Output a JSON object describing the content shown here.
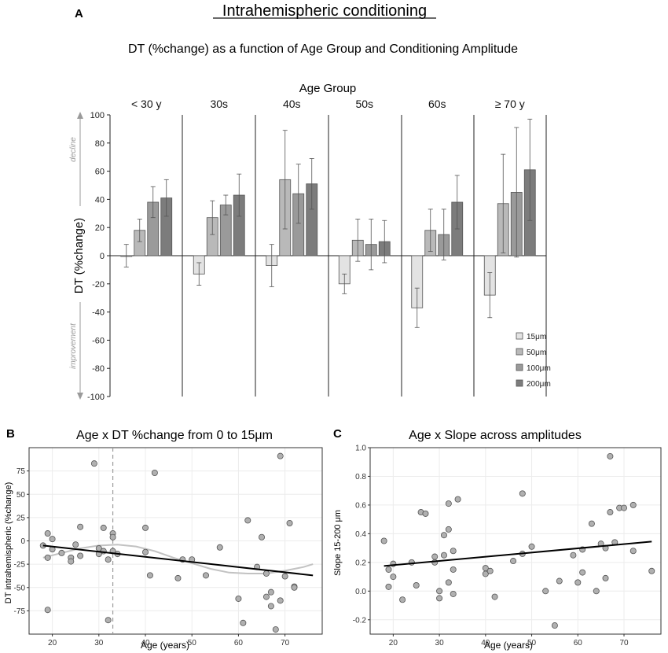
{
  "figure": {
    "title": "Intrahemispheric conditioning",
    "subtitle": "DT (%change) as a function of Age Group and Conditioning Amplitude"
  },
  "panel_labels": {
    "a": "A",
    "b": "B",
    "c": "C"
  },
  "colors": {
    "amp15": "#e3e3e3",
    "amp50": "#b9b9b9",
    "amp100": "#9a9a9a",
    "amp200": "#7c7c7c",
    "points": "#b0b0b0",
    "fit": "#000000",
    "smooth": "#c2c2c2",
    "dashed": "#9a9a9a",
    "grid": "#ececec"
  },
  "chart_data": [
    {
      "type": "bar",
      "panel": "A",
      "title": "DT (%change) as a function of Age Group and Conditioning Amplitude",
      "group_axis_label": "Age Group",
      "categories": [
        "< 30 y",
        "30s",
        "40s",
        "50s",
        "60s",
        "≥ 70 y"
      ],
      "ylabel": "DT (%change)",
      "ylim": [
        -100,
        100
      ],
      "yticks": [
        100,
        80,
        60,
        40,
        20,
        0,
        -20,
        -40,
        -60,
        -80,
        -100
      ],
      "annotations": {
        "up": "decline",
        "down": "improvement"
      },
      "series": [
        {
          "name": "15μm",
          "values": [
            0,
            -13,
            -7,
            -20,
            -37,
            -28
          ],
          "error": [
            8,
            8,
            15,
            7,
            14,
            16
          ]
        },
        {
          "name": "50μm",
          "values": [
            18,
            27,
            54,
            11,
            18,
            37
          ],
          "error": [
            8,
            12,
            35,
            15,
            15,
            35
          ]
        },
        {
          "name": "100μm",
          "values": [
            38,
            36,
            44,
            8,
            15,
            45
          ],
          "error": [
            11,
            7,
            21,
            18,
            18,
            46
          ]
        },
        {
          "name": "200μm",
          "values": [
            41,
            43,
            51,
            10,
            38,
            61
          ],
          "error": [
            13,
            15,
            18,
            15,
            19,
            36
          ]
        }
      ]
    },
    {
      "type": "scatter",
      "panel": "B",
      "title": "Age x DT %change from 0 to 15μm",
      "xlabel": "Age (years)",
      "ylabel": "DT intrahemispheric (%change)",
      "xlim": [
        15,
        78
      ],
      "ylim": [
        -100,
        100
      ],
      "xticks": [
        20,
        30,
        40,
        50,
        60,
        70
      ],
      "yticks": [
        75,
        50,
        25,
        0,
        -25,
        -50,
        -75
      ],
      "ytick_labels": [
        "75",
        "50",
        "25",
        "0",
        "-25",
        "-50",
        "-75"
      ],
      "vertical_reference_x": 33,
      "fit_line": [
        [
          18,
          -5
        ],
        [
          76,
          -37
        ]
      ],
      "smooth_curve": [
        [
          18,
          -18
        ],
        [
          22,
          -13
        ],
        [
          26,
          -8
        ],
        [
          30,
          -5
        ],
        [
          34,
          -4
        ],
        [
          38,
          -6
        ],
        [
          42,
          -11
        ],
        [
          46,
          -18
        ],
        [
          50,
          -24
        ],
        [
          54,
          -30
        ],
        [
          58,
          -34
        ],
        [
          62,
          -35
        ],
        [
          66,
          -35
        ],
        [
          70,
          -32
        ],
        [
          74,
          -28
        ],
        [
          76,
          -25
        ]
      ],
      "points": [
        [
          18,
          -5
        ],
        [
          19,
          8
        ],
        [
          19,
          -18
        ],
        [
          19,
          -74
        ],
        [
          20,
          2
        ],
        [
          20,
          -9
        ],
        [
          22,
          -13
        ],
        [
          24,
          -18
        ],
        [
          24,
          -22
        ],
        [
          25,
          -4
        ],
        [
          26,
          15
        ],
        [
          26,
          -16
        ],
        [
          29,
          83
        ],
        [
          30,
          -8
        ],
        [
          30,
          -14
        ],
        [
          31,
          14
        ],
        [
          31,
          -11
        ],
        [
          32,
          -20
        ],
        [
          32,
          -85
        ],
        [
          33,
          8
        ],
        [
          33,
          4
        ],
        [
          33,
          -11
        ],
        [
          34,
          -14
        ],
        [
          40,
          14
        ],
        [
          40,
          -12
        ],
        [
          41,
          -37
        ],
        [
          42,
          73
        ],
        [
          47,
          -40
        ],
        [
          48,
          -20
        ],
        [
          50,
          -20
        ],
        [
          53,
          -37
        ],
        [
          56,
          -7
        ],
        [
          60,
          -62
        ],
        [
          61,
          -88
        ],
        [
          62,
          22
        ],
        [
          64,
          -28
        ],
        [
          65,
          4
        ],
        [
          66,
          -35
        ],
        [
          66,
          -60
        ],
        [
          67,
          -70
        ],
        [
          67,
          -55
        ],
        [
          68,
          -95
        ],
        [
          69,
          -64
        ],
        [
          69,
          91
        ],
        [
          70,
          -38
        ],
        [
          71,
          19
        ],
        [
          72,
          -49
        ],
        [
          72,
          -50
        ]
      ]
    },
    {
      "type": "scatter",
      "panel": "C",
      "title": "Age x Slope across amplitudes",
      "xlabel": "Age (years)",
      "ylabel": "Slope 15-200 μm",
      "xlim": [
        15,
        78
      ],
      "ylim": [
        -0.3,
        1.0
      ],
      "xticks": [
        20,
        30,
        40,
        50,
        60,
        70
      ],
      "yticks": [
        1.0,
        0.8,
        0.6,
        0.4,
        0.2,
        0.0,
        -0.2
      ],
      "ytick_labels": [
        "1.0",
        "0.8",
        "0.6",
        "0.4",
        "0.2",
        "0.0",
        "-0.2"
      ],
      "fit_line": [
        [
          18,
          0.175
        ],
        [
          76,
          0.345
        ]
      ],
      "points": [
        [
          18,
          0.35
        ],
        [
          19,
          0.15
        ],
        [
          19,
          0.03
        ],
        [
          20,
          0.19
        ],
        [
          20,
          0.1
        ],
        [
          22,
          -0.06
        ],
        [
          24,
          0.2
        ],
        [
          25,
          0.04
        ],
        [
          26,
          0.55
        ],
        [
          27,
          0.54
        ],
        [
          29,
          0.24
        ],
        [
          29,
          0.2
        ],
        [
          30,
          -0.05
        ],
        [
          30,
          0.0
        ],
        [
          31,
          0.25
        ],
        [
          31,
          0.39
        ],
        [
          32,
          0.43
        ],
        [
          32,
          0.06
        ],
        [
          32,
          0.61
        ],
        [
          33,
          0.28
        ],
        [
          33,
          0.15
        ],
        [
          33,
          -0.02
        ],
        [
          34,
          0.64
        ],
        [
          40,
          0.16
        ],
        [
          40,
          0.12
        ],
        [
          41,
          0.14
        ],
        [
          42,
          -0.04
        ],
        [
          46,
          0.21
        ],
        [
          48,
          0.68
        ],
        [
          48,
          0.26
        ],
        [
          50,
          0.31
        ],
        [
          53,
          0.0
        ],
        [
          55,
          -0.24
        ],
        [
          56,
          0.07
        ],
        [
          59,
          0.25
        ],
        [
          60,
          0.06
        ],
        [
          61,
          0.13
        ],
        [
          61,
          0.29
        ],
        [
          63,
          0.47
        ],
        [
          64,
          0.0
        ],
        [
          65,
          0.33
        ],
        [
          66,
          0.3
        ],
        [
          66,
          0.09
        ],
        [
          67,
          0.55
        ],
        [
          67,
          0.94
        ],
        [
          68,
          0.34
        ],
        [
          69,
          0.58
        ],
        [
          70,
          0.58
        ],
        [
          72,
          0.6
        ],
        [
          72,
          0.28
        ],
        [
          76,
          0.14
        ]
      ]
    }
  ]
}
